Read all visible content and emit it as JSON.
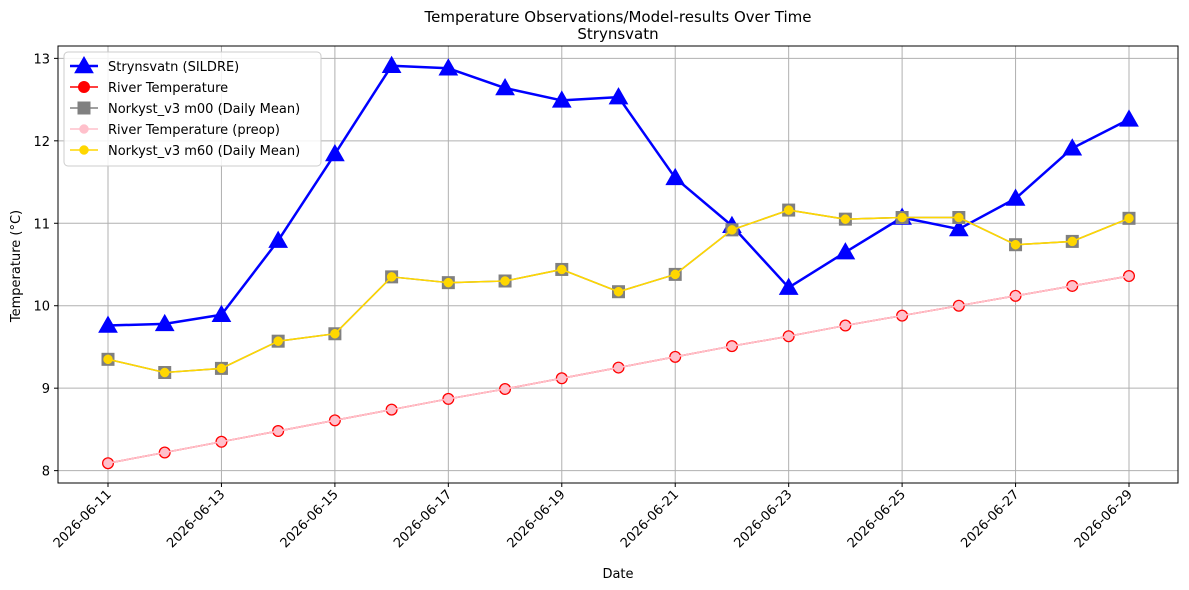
{
  "chart_data": {
    "type": "line",
    "title": "Temperature Observations/Model-results Over Time",
    "subtitle": "Strynsvatn",
    "xlabel": "Date",
    "ylabel": "Temperature (°C)",
    "x": [
      "2026-06-11",
      "2026-06-12",
      "2026-06-13",
      "2026-06-14",
      "2026-06-15",
      "2026-06-16",
      "2026-06-17",
      "2026-06-18",
      "2026-06-19",
      "2026-06-20",
      "2026-06-21",
      "2026-06-22",
      "2026-06-23",
      "2026-06-24",
      "2026-06-25",
      "2026-06-26",
      "2026-06-27",
      "2026-06-28",
      "2026-06-29"
    ],
    "xticks": [
      "2026-06-11",
      "2026-06-13",
      "2026-06-15",
      "2026-06-17",
      "2026-06-19",
      "2026-06-21",
      "2026-06-23",
      "2026-06-25",
      "2026-06-27",
      "2026-06-29"
    ],
    "yticks": [
      8,
      9,
      10,
      11,
      12,
      13
    ],
    "ylim": [
      7.85,
      13.15
    ],
    "grid": true,
    "legend_position": "top-left",
    "series": [
      {
        "name": "Strynsvatn (SILDRE)",
        "color": "#0000ff",
        "marker": "triangle",
        "values": [
          9.76,
          9.78,
          9.89,
          10.79,
          11.84,
          12.91,
          12.88,
          12.64,
          12.49,
          12.53,
          11.55,
          10.97,
          10.22,
          10.65,
          11.07,
          10.93,
          11.3,
          11.91,
          12.26
        ]
      },
      {
        "name": "River Temperature",
        "color": "#ff0000",
        "marker": "circle",
        "values": [
          8.09,
          8.22,
          8.35,
          8.48,
          8.61,
          8.74,
          8.87,
          8.99,
          9.12,
          9.25,
          9.38,
          9.51,
          9.63,
          9.76,
          9.88,
          10.0,
          10.12,
          10.24,
          10.36
        ]
      },
      {
        "name": "Norkyst_v3 m00 (Daily Mean)",
        "color": "#808080",
        "marker": "square",
        "values": [
          9.35,
          9.19,
          9.24,
          9.57,
          9.66,
          10.35,
          10.28,
          10.3,
          10.44,
          10.17,
          10.38,
          10.92,
          11.16,
          11.05,
          11.07,
          11.07,
          10.74,
          10.78,
          11.06
        ]
      },
      {
        "name": "River Temperature (preop)",
        "color": "#ffc0cb",
        "marker": "small-circle",
        "values": [
          8.09,
          8.22,
          8.35,
          8.48,
          8.61,
          8.74,
          8.87,
          8.99,
          9.12,
          9.25,
          9.38,
          9.51,
          9.63,
          9.76,
          9.88,
          10.0,
          10.12,
          10.24,
          10.36
        ]
      },
      {
        "name": "Norkyst_v3 m60 (Daily Mean)",
        "color": "#ffd700",
        "marker": "small-circle",
        "values": [
          9.35,
          9.19,
          9.24,
          9.57,
          9.66,
          10.35,
          10.28,
          10.3,
          10.44,
          10.17,
          10.38,
          10.92,
          11.16,
          11.05,
          11.07,
          11.07,
          10.74,
          10.78,
          11.06
        ]
      }
    ]
  }
}
